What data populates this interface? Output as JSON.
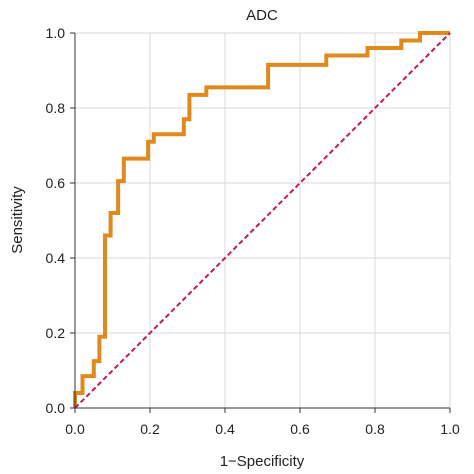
{
  "chart_data": {
    "type": "line",
    "title": "ADC",
    "xlabel": "1−Specificity",
    "ylabel": "Sensitivity",
    "xlim": [
      0.0,
      1.0
    ],
    "ylim": [
      0.0,
      1.0
    ],
    "x_ticks": [
      "0.0",
      "0.2",
      "0.4",
      "0.6",
      "0.8",
      "1.0"
    ],
    "y_ticks": [
      "0.0",
      "0.2",
      "0.4",
      "0.6",
      "0.8",
      "1.0"
    ],
    "grid": true,
    "series": [
      {
        "color": "#E08A1E",
        "step": true,
        "points": [
          [
            0.0,
            0.0
          ],
          [
            0.0,
            0.04
          ],
          [
            0.02,
            0.04
          ],
          [
            0.02,
            0.085
          ],
          [
            0.05,
            0.085
          ],
          [
            0.05,
            0.125
          ],
          [
            0.065,
            0.125
          ],
          [
            0.065,
            0.19
          ],
          [
            0.08,
            0.19
          ],
          [
            0.08,
            0.46
          ],
          [
            0.095,
            0.46
          ],
          [
            0.095,
            0.52
          ],
          [
            0.115,
            0.52
          ],
          [
            0.115,
            0.605
          ],
          [
            0.13,
            0.605
          ],
          [
            0.13,
            0.665
          ],
          [
            0.195,
            0.665
          ],
          [
            0.195,
            0.71
          ],
          [
            0.21,
            0.71
          ],
          [
            0.21,
            0.73
          ],
          [
            0.29,
            0.73
          ],
          [
            0.29,
            0.77
          ],
          [
            0.305,
            0.77
          ],
          [
            0.305,
            0.835
          ],
          [
            0.35,
            0.835
          ],
          [
            0.35,
            0.855
          ],
          [
            0.515,
            0.855
          ],
          [
            0.515,
            0.915
          ],
          [
            0.67,
            0.915
          ],
          [
            0.67,
            0.94
          ],
          [
            0.78,
            0.94
          ],
          [
            0.78,
            0.96
          ],
          [
            0.87,
            0.96
          ],
          [
            0.87,
            0.98
          ],
          [
            0.92,
            0.98
          ],
          [
            0.92,
            1.0
          ],
          [
            1.0,
            1.0
          ]
        ]
      },
      {
        "color": "#C2185B",
        "dashed": true,
        "points": [
          [
            0.0,
            0.0
          ],
          [
            1.0,
            1.0
          ]
        ]
      }
    ]
  }
}
